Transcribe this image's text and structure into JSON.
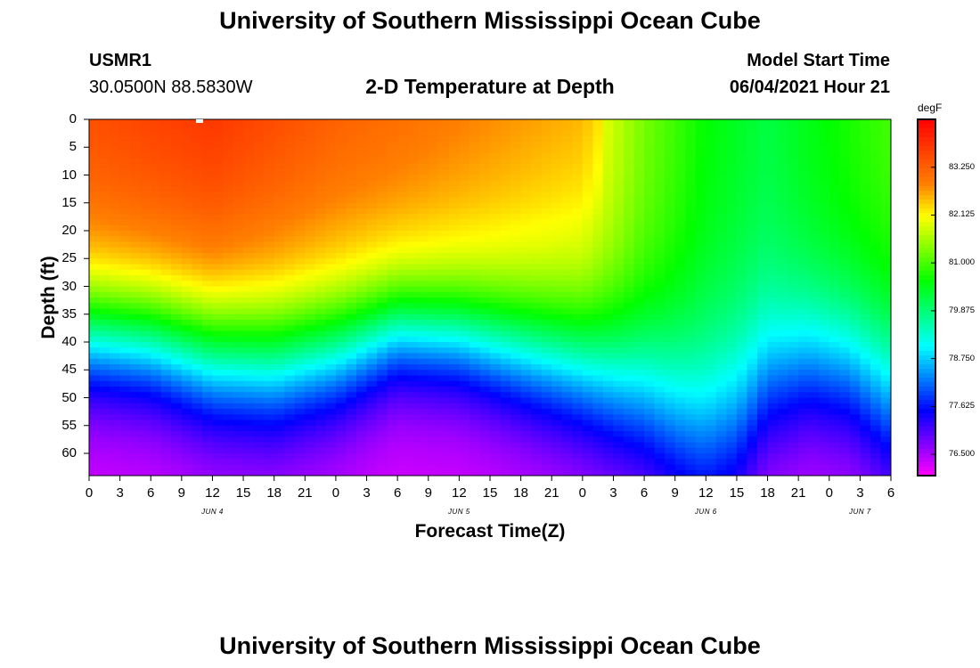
{
  "page": {
    "title_top": "University of Southern Mississippi Ocean Cube",
    "title_bottom": "University of Southern Mississippi Ocean Cube"
  },
  "header": {
    "station": "USMR1",
    "coords": "30.0500N  88.5830W",
    "plot_title": "2-D Temperature at Depth",
    "model_label": "Model Start Time",
    "model_time": "06/04/2021 Hour 21"
  },
  "colors": {
    "scale": [
      "#ff00ff",
      "#7f00ff",
      "#0000ff",
      "#0080ff",
      "#00ffff",
      "#00ff80",
      "#00ff00",
      "#80ff00",
      "#ffff00",
      "#ff8000",
      "#ff4000",
      "#ff0000"
    ]
  },
  "chart_data": {
    "type": "heatmap",
    "title": "2-D Temperature at Depth",
    "xlabel": "Forecast Time(Z)",
    "ylabel": "Depth (ft)",
    "ylim": [
      0,
      64
    ],
    "y_inverted": true,
    "y_ticks": [
      "0",
      "5",
      "10",
      "15",
      "20",
      "25",
      "30",
      "35",
      "40",
      "45",
      "50",
      "55",
      "60"
    ],
    "x_ticks": [
      "0",
      "3",
      "6",
      "9",
      "12",
      "15",
      "18",
      "21",
      "0",
      "3",
      "6",
      "9",
      "12",
      "15",
      "18",
      "21",
      "0",
      "3",
      "6",
      "9",
      "12",
      "15",
      "18",
      "21",
      "0",
      "3",
      "6"
    ],
    "x_range_hours": [
      0,
      78
    ],
    "date_labels": [
      {
        "label": "JUN 4",
        "hour": 12
      },
      {
        "label": "JUN 5",
        "hour": 36
      },
      {
        "label": "JUN 6",
        "hour": 60
      },
      {
        "label": "JUN 7",
        "hour": 75
      }
    ],
    "colorbar": {
      "unit": "degF",
      "range": [
        76.0,
        84.375
      ],
      "ticks": [
        "83.250",
        "82.125",
        "81.000",
        "79.875",
        "78.750",
        "77.625",
        "76.500"
      ]
    },
    "surface_temp_degF": [
      {
        "hour": 0,
        "value": 83.2
      },
      {
        "hour": 12,
        "value": 83.5
      },
      {
        "hour": 24,
        "value": 83.0
      },
      {
        "hour": 48,
        "value": 82.3
      },
      {
        "hour": 54,
        "value": 81.3
      },
      {
        "hour": 60,
        "value": 80.6
      },
      {
        "hour": 66,
        "value": 80.2
      },
      {
        "hour": 78,
        "value": 81.0
      }
    ],
    "thermocline_depth_ft": [
      {
        "hour": 0,
        "value": 38
      },
      {
        "hour": 6,
        "value": 39
      },
      {
        "hour": 12,
        "value": 42
      },
      {
        "hour": 18,
        "value": 43
      },
      {
        "hour": 24,
        "value": 41
      },
      {
        "hour": 30,
        "value": 37
      },
      {
        "hour": 36,
        "value": 38
      },
      {
        "hour": 42,
        "value": 41
      },
      {
        "hour": 48,
        "value": 44
      },
      {
        "hour": 54,
        "value": 49
      },
      {
        "hour": 58,
        "value": 54
      },
      {
        "hour": 60,
        "value": 56
      },
      {
        "hour": 63,
        "value": 54
      },
      {
        "hour": 66,
        "value": 47
      },
      {
        "hour": 70,
        "value": 44
      },
      {
        "hour": 74,
        "value": 45
      },
      {
        "hour": 78,
        "value": 50
      }
    ],
    "bottom_temp_degF": 76.2
  }
}
